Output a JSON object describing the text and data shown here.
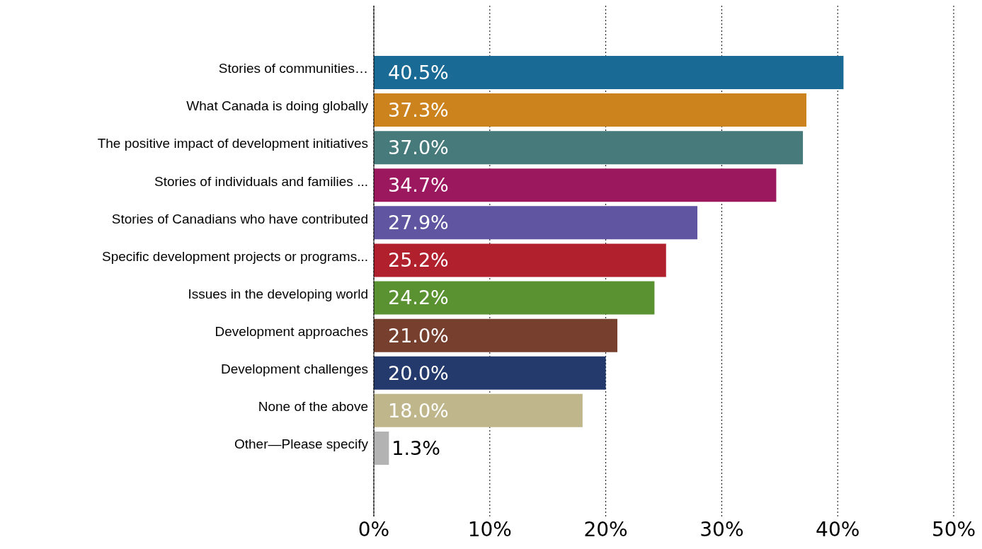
{
  "chart_data": {
    "type": "bar",
    "orientation": "horizontal",
    "categories": [
      "Stories of communities…",
      "What Canada is doing globally",
      "The positive impact of development initiatives",
      "Stories of individuals and families ...",
      "Stories of Canadians who have contributed",
      "Specific development projects or programs...",
      "Issues in the developing world",
      "Development approaches",
      "Development challenges",
      "None of the above",
      "Other—Please specify"
    ],
    "values": [
      40.5,
      37.3,
      37.0,
      34.7,
      27.9,
      25.2,
      24.2,
      21.0,
      20.0,
      18.0,
      1.3
    ],
    "value_labels": [
      "40.5%",
      "37.3%",
      "37.0%",
      "34.7%",
      "27.9%",
      "25.2%",
      "24.2%",
      "21.0%",
      "20.0%",
      "18.0%",
      "1.3%"
    ],
    "colors": [
      "#1a6a96",
      "#cc831e",
      "#477a7b",
      "#9c185e",
      "#5f55a0",
      "#b1212d",
      "#5a9232",
      "#763f2e",
      "#243a6c",
      "#bfb78b",
      "#b3b3b3"
    ],
    "xlim": [
      0,
      50
    ],
    "xticks": [
      {
        "value": 0,
        "label": "0%"
      },
      {
        "value": 10,
        "label": "10%"
      },
      {
        "value": 20,
        "label": "20%"
      },
      {
        "value": 30,
        "label": "30%"
      },
      {
        "value": 40,
        "label": "40%"
      },
      {
        "value": 50,
        "label": "50%"
      }
    ],
    "grid": "x"
  }
}
